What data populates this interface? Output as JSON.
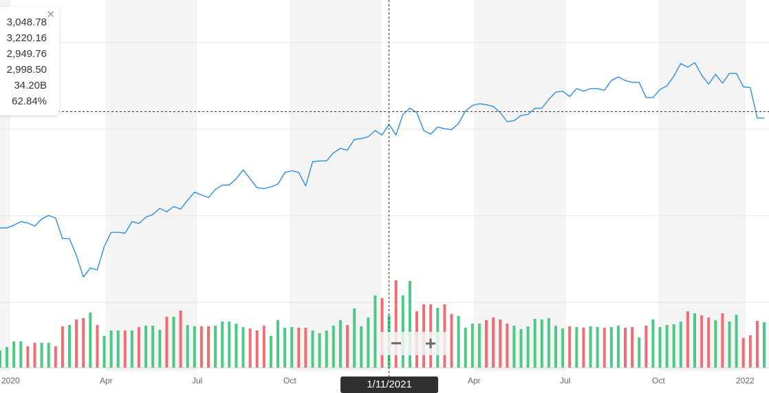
{
  "tooltip": {
    "open": "3,048.78",
    "high": "3,220.16",
    "low": "2,949.76",
    "close": "2,998.50",
    "volume": "34.20B",
    "change": "62.84%",
    "close_icon": "close-icon"
  },
  "crosshair": {
    "date_label": "1/11/2021"
  },
  "zoom": {
    "minus_label": "−",
    "plus_label": "+"
  },
  "colors": {
    "line": "#2b8fe0",
    "up": "#4cc887",
    "down": "#f26d73",
    "band": "#f4f4f4"
  },
  "chart_data": {
    "type": "line",
    "x_ticks": [
      "2020",
      "Apr",
      "Jul",
      "Oct",
      "Apr",
      "Jul",
      "Oct",
      "2022"
    ],
    "series": [
      {
        "values": [
          1110,
          1110,
          1140,
          1180,
          1165,
          1130,
          1210,
          1250,
          1220,
          990,
          990,
          800,
          560,
          660,
          640,
          900,
          1060,
          1060,
          1050,
          1180,
          1160,
          1230,
          1260,
          1330,
          1290,
          1350,
          1320,
          1420,
          1510,
          1480,
          1450,
          1540,
          1590,
          1590,
          1660,
          1760,
          1660,
          1560,
          1550,
          1570,
          1600,
          1730,
          1750,
          1730,
          1580,
          1850,
          1860,
          1860,
          1950,
          2000,
          1980,
          2100,
          2110,
          2130,
          2200,
          2150,
          2270,
          2150,
          2380,
          2450,
          2400,
          2200,
          2160,
          2240,
          2220,
          2210,
          2280,
          2420,
          2480,
          2500,
          2490,
          2470,
          2400,
          2300,
          2310,
          2370,
          2380,
          2450,
          2450,
          2550,
          2630,
          2640,
          2580,
          2670,
          2640,
          2670,
          2670,
          2650,
          2760,
          2800,
          2760,
          2740,
          2740,
          2570,
          2570,
          2660,
          2700,
          2810,
          2950,
          2910,
          2960,
          2820,
          2720,
          2830,
          2730,
          2840,
          2840,
          2690,
          2680,
          2340,
          2340
        ]
      },
      {
        "type": "bar",
        "values": [
          25,
          30,
          38,
          38,
          31,
          36,
          36,
          36,
          31,
          60,
          62,
          70,
          72,
          80,
          62,
          46,
          54,
          54,
          54,
          54,
          59,
          61,
          61,
          55,
          74,
          74,
          83,
          62,
          60,
          60,
          60,
          61,
          67,
          67,
          64,
          59,
          57,
          54,
          61,
          46,
          69,
          58,
          59,
          58,
          58,
          54,
          50,
          54,
          61,
          69,
          62,
          86,
          60,
          73,
          105,
          101,
          76,
          127,
          105,
          126,
          82,
          92,
          92,
          87,
          92,
          78,
          75,
          58,
          64,
          64,
          69,
          73,
          70,
          64,
          61,
          56,
          60,
          71,
          70,
          72,
          61,
          57,
          60,
          59,
          58,
          60,
          59,
          58,
          59,
          61,
          58,
          59,
          44,
          61,
          70,
          59,
          62,
          63,
          67,
          82,
          79,
          76,
          73,
          69,
          79,
          67,
          77,
          43,
          47,
          68,
          66
        ]
      }
    ]
  }
}
